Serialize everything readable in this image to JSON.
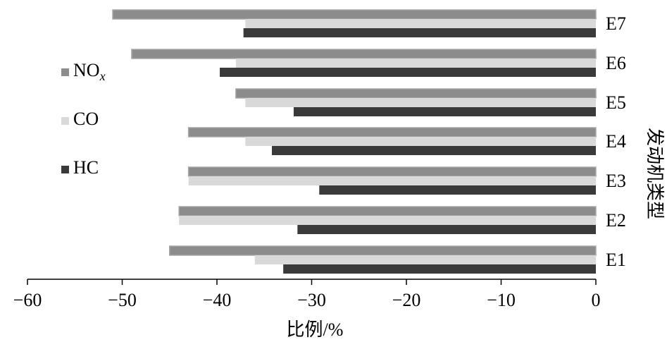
{
  "chart_data": {
    "type": "bar",
    "orientation": "horizontal",
    "categories": [
      "E1",
      "E2",
      "E3",
      "E4",
      "E5",
      "E6",
      "E7"
    ],
    "series": [
      {
        "name": "NO",
        "name_subscript": "x",
        "color": "#8c8c8c",
        "values": [
          -45,
          -44,
          -43,
          -43,
          -38,
          -49,
          -51
        ]
      },
      {
        "name": "CO",
        "color": "#d9d9d9",
        "values": [
          -36,
          -44,
          -43,
          -37,
          -37,
          -38,
          -37
        ]
      },
      {
        "name": "HC",
        "color": "#3a3a3a",
        "values": [
          -33,
          -31.5,
          -29.2,
          -34.2,
          -31.9,
          -39.7,
          -37.2
        ]
      }
    ],
    "xlabel": "比例/%",
    "ylabel": "发动机类型",
    "xlim": [
      -60,
      0
    ],
    "xticks": [
      -60,
      -50,
      -40,
      -30,
      -20,
      -10,
      0
    ],
    "xtick_labels": [
      "−60",
      "−50",
      "−40",
      "−30",
      "−20",
      "−10",
      "0"
    ],
    "grid": false,
    "legend_position": "left"
  }
}
